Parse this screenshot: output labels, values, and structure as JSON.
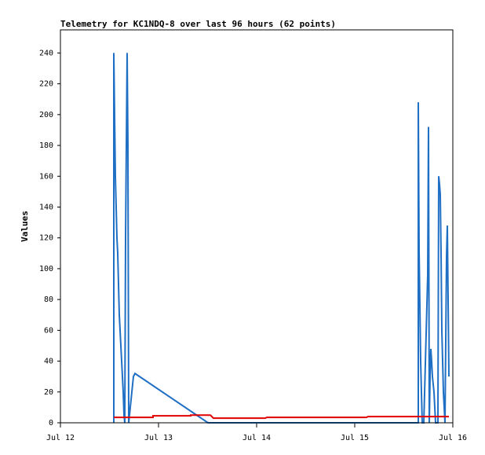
{
  "chart_data": {
    "type": "line",
    "title": "Telemetry for KC1NDQ-8 over last 96 hours (62 points)",
    "y_label": "Values",
    "xlim": [
      0,
      4
    ],
    "xticks": [
      {
        "value": 0,
        "label": "Jul 12"
      },
      {
        "value": 1,
        "label": "Jul 13"
      },
      {
        "value": 2,
        "label": "Jul 14"
      },
      {
        "value": 3,
        "label": "Jul 15"
      },
      {
        "value": 4,
        "label": "Jul 16"
      }
    ],
    "ylim": [
      0,
      255
    ],
    "yticks": [
      0,
      20,
      40,
      60,
      80,
      100,
      120,
      140,
      160,
      180,
      200,
      220,
      240
    ],
    "series": [
      {
        "color": "#1f6fc5",
        "x": [
          0.544,
          0.544,
          0.56,
          0.568,
          0.576,
          0.584,
          0.592,
          0.6,
          0.608,
          0.616,
          0.624,
          0.632,
          0.64,
          0.648,
          0.656,
          0.664,
          0.68,
          0.688,
          0.696,
          0.712,
          0.728,
          0.744,
          0.76,
          1.504,
          3.648,
          3.648,
          3.656,
          3.672,
          3.688,
          3.704,
          3.744,
          3.752,
          3.76,
          3.768,
          3.776,
          3.784,
          3.792,
          3.808,
          3.824,
          3.848,
          3.856,
          3.864,
          3.872,
          3.88,
          3.888,
          3.904,
          3.92,
          3.936,
          3.944,
          3.952,
          3.96
        ],
        "values": [
          0,
          240,
          160,
          140,
          120,
          110,
          90,
          70,
          60,
          50,
          40,
          30,
          20,
          5,
          0,
          120,
          240,
          180,
          0,
          10,
          20,
          30,
          32,
          0,
          0,
          208,
          112,
          40,
          0,
          0,
          96,
          192,
          0,
          30,
          48,
          40,
          30,
          20,
          0,
          0,
          160,
          155,
          148,
          110,
          60,
          20,
          0,
          108,
          128,
          80,
          30
        ]
      },
      {
        "color": "#e00000",
        "x": [
          0.544,
          0.944,
          0.944,
          1.328,
          1.328,
          1.528,
          1.56,
          2.088,
          2.104,
          3.12,
          3.136,
          3.96
        ],
        "values": [
          3.5,
          3.5,
          4.5,
          4.5,
          5,
          5,
          3,
          3,
          3.5,
          3.5,
          4,
          4
        ]
      }
    ]
  }
}
